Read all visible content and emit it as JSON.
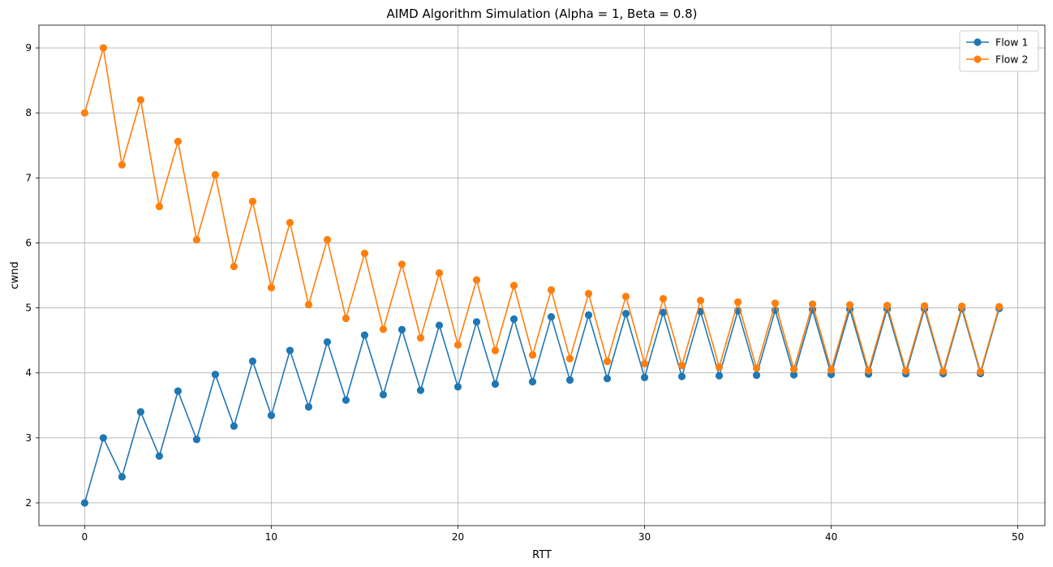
{
  "chart_data": {
    "type": "line",
    "title": "AIMD Algorithm Simulation (Alpha = 1, Beta = 0.8)",
    "xlabel": "RTT",
    "ylabel": "cwnd",
    "xlim": [
      -2.45,
      51.45
    ],
    "ylim": [
      1.65,
      9.35
    ],
    "xticks": [
      0,
      10,
      20,
      30,
      40,
      50
    ],
    "yticks": [
      2,
      3,
      4,
      5,
      6,
      7,
      8,
      9
    ],
    "grid": true,
    "legend_position": "top-right",
    "x": [
      0,
      1,
      2,
      3,
      4,
      5,
      6,
      7,
      8,
      9,
      10,
      11,
      12,
      13,
      14,
      15,
      16,
      17,
      18,
      19,
      20,
      21,
      22,
      23,
      24,
      25,
      26,
      27,
      28,
      29,
      30,
      31,
      32,
      33,
      34,
      35,
      36,
      37,
      38,
      39,
      40,
      41,
      42,
      43,
      44,
      45,
      46,
      47,
      48,
      49
    ],
    "series": [
      {
        "name": "Flow 1",
        "color": "#1f77b4",
        "marker": "circle",
        "values": [
          2.0,
          3.0,
          2.4,
          3.4,
          2.72,
          3.72,
          2.976,
          3.976,
          3.181,
          4.181,
          3.345,
          4.345,
          3.476,
          4.476,
          3.581,
          4.581,
          3.665,
          4.665,
          3.732,
          4.732,
          3.785,
          4.785,
          3.828,
          4.828,
          3.863,
          4.863,
          3.89,
          4.89,
          3.912,
          4.912,
          3.929,
          4.929,
          3.944,
          4.944,
          3.955,
          4.955,
          3.964,
          4.964,
          3.971,
          4.971,
          3.977,
          4.977,
          3.982,
          4.982,
          3.985,
          4.985,
          3.988,
          4.988,
          3.99,
          4.99
        ]
      },
      {
        "name": "Flow 2",
        "color": "#ff7f0e",
        "marker": "circle",
        "values": [
          8.0,
          9.0,
          7.2,
          8.2,
          6.56,
          7.56,
          6.048,
          7.048,
          5.638,
          6.638,
          5.311,
          6.311,
          5.049,
          6.049,
          4.839,
          5.839,
          4.671,
          5.671,
          4.537,
          5.537,
          4.43,
          5.43,
          4.344,
          5.344,
          4.275,
          5.275,
          4.22,
          5.22,
          4.176,
          5.176,
          4.141,
          5.141,
          4.113,
          5.113,
          4.09,
          5.09,
          4.072,
          5.072,
          4.058,
          5.058,
          4.046,
          5.046,
          4.037,
          5.037,
          4.03,
          5.03,
          4.024,
          5.024,
          4.019,
          5.019
        ]
      }
    ]
  }
}
